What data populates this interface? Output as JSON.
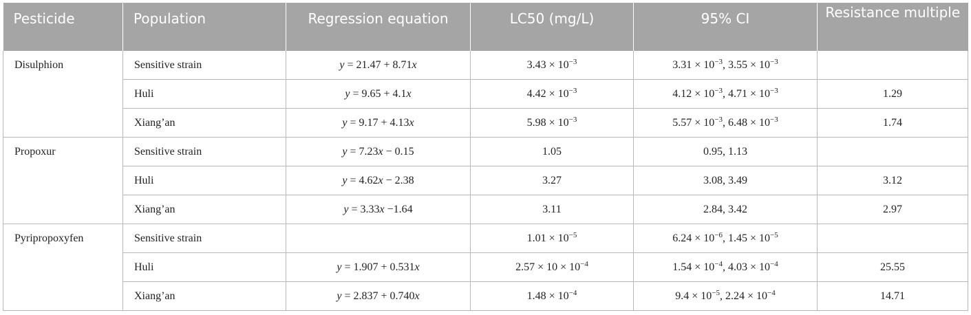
{
  "table": {
    "headers": [
      "Pesticide",
      "Population",
      "Regression equation",
      "LC50 (mg/L)",
      "95% CI",
      "Resistance multiple"
    ],
    "groups": [
      {
        "pesticide": "Disulphion",
        "rows": [
          {
            "population": "Sensitive strain",
            "eq_pre": "",
            "eq_post": " = 21.47 + 8.71",
            "eq_var": "x",
            "lc50_base": "3.43 × 10",
            "lc50_exp": "−3",
            "ci_a_base": "3.31 × 10",
            "ci_a_exp": "−3",
            "ci_b_base": ", 3.55 × 10",
            "ci_b_exp": "−3",
            "resistance": ""
          },
          {
            "population": "Huli",
            "eq_pre": "",
            "eq_post": " = 9.65 + 4.1",
            "eq_var": "x",
            "lc50_base": "4.42 × 10",
            "lc50_exp": "−3",
            "ci_a_base": "4.12 × 10",
            "ci_a_exp": "−3",
            "ci_b_base": ", 4.71 × 10",
            "ci_b_exp": "−3",
            "resistance": "1.29"
          },
          {
            "population": "Xiang’an",
            "eq_pre": "",
            "eq_post": " = 9.17 + 4.13",
            "eq_var": "x",
            "lc50_base": "5.98 × 10",
            "lc50_exp": "−3",
            "ci_a_base": "5.57 × 10",
            "ci_a_exp": "−3",
            "ci_b_base": ", 6.48 × 10",
            "ci_b_exp": "−3",
            "resistance": "1.74"
          }
        ]
      },
      {
        "pesticide": "Propoxur",
        "rows": [
          {
            "population": "Sensitive strain",
            "eq_mid": " = 7.23",
            "eq_tail": " − 0.15",
            "lc50": "1.05",
            "ci": "0.95, 1.13",
            "resistance": ""
          },
          {
            "population": "Huli",
            "eq_mid": " = 4.62",
            "eq_tail": " − 2.38",
            "lc50": "3.27",
            "ci": "3.08, 3.49",
            "resistance": "3.12"
          },
          {
            "population": "Xiang’an",
            "eq_mid": " = 3.33",
            "eq_tail": " −1.64",
            "lc50": "3.11",
            "ci": "2.84, 3.42",
            "resistance": "2.97"
          }
        ]
      },
      {
        "pesticide": "Pyripropoxyfen",
        "rows": [
          {
            "population": "Sensitive strain",
            "lc50_base": "1.01 × 10",
            "lc50_exp": "−5",
            "ci_a_base": "6.24 × 10",
            "ci_a_exp": "−6",
            "ci_b_base": ", 1.45 × 10",
            "ci_b_exp": "−5",
            "resistance": ""
          },
          {
            "population": "Huli",
            "eq_post": " = 1.907 + 0.531",
            "lc50_base": "2.57 × 10 × 10",
            "lc50_exp": "−4",
            "ci_a_base": "1.54 × 10",
            "ci_a_exp": "−4",
            "ci_b_base": ", 4.03 × 10",
            "ci_b_exp": "−4",
            "resistance": "25.55"
          },
          {
            "population": "Xiang’an",
            "eq_post": " = 2.837 + 0.740",
            "lc50_base": "1.48 × 10",
            "lc50_exp": "−4",
            "ci_a_base": "9.4 × 10",
            "ci_a_exp": "−5",
            "ci_b_base": ", 2.24 × 10",
            "ci_b_exp": "−4",
            "resistance": "14.71"
          }
        ]
      }
    ],
    "var_y": "y",
    "var_x": "x"
  }
}
